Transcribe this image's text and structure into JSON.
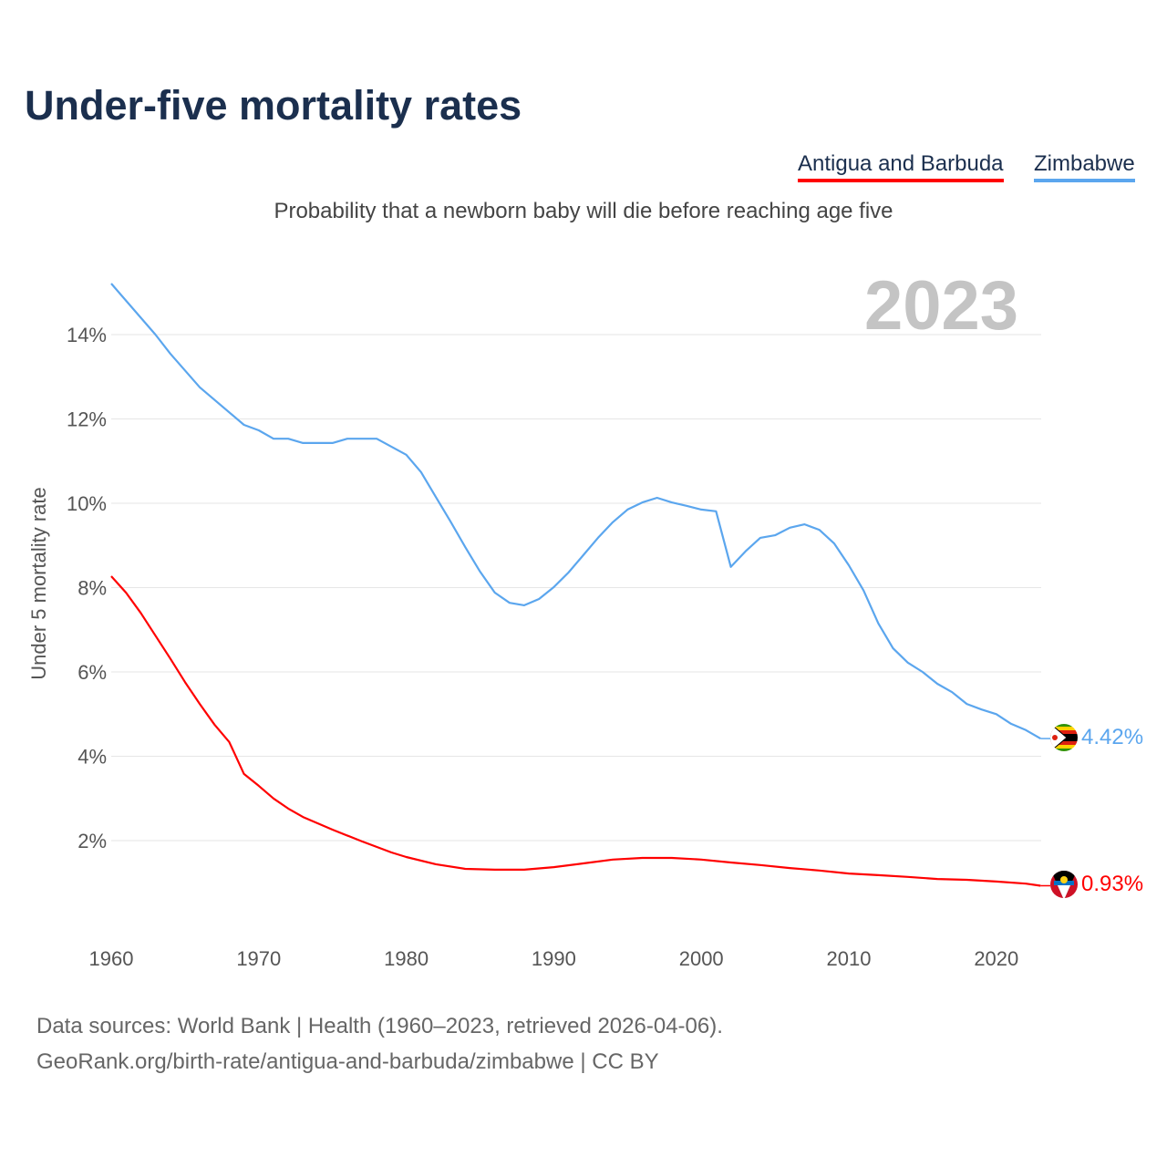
{
  "chart_data": {
    "type": "line",
    "title": "Under-five mortality rates",
    "subtitle": "Probability that a newborn baby will die before reaching age five",
    "ylabel": "Under 5 mortality rate",
    "xlabel": "",
    "year_label": "2023",
    "xlim": [
      1960,
      2023
    ],
    "ylim": [
      0,
      15.5
    ],
    "x_ticks": [
      1960,
      1970,
      1980,
      1990,
      2000,
      2010,
      2020
    ],
    "y_ticks": [
      2,
      4,
      6,
      8,
      10,
      12,
      14
    ],
    "y_tick_labels": [
      "2%",
      "4%",
      "6%",
      "8%",
      "10%",
      "12%",
      "14%"
    ],
    "grid": true,
    "legend_position": "top-right",
    "series": [
      {
        "name": "Antigua and Barbuda",
        "color": "#ff0000",
        "end_label": "0.93%",
        "x": [
          1960,
          1961,
          1962,
          1963,
          1964,
          1965,
          1966,
          1967,
          1968,
          1969,
          1970,
          1971,
          1972,
          1973,
          1975,
          1977,
          1979,
          1980,
          1982,
          1984,
          1986,
          1988,
          1990,
          1992,
          1994,
          1996,
          1998,
          2000,
          2002,
          2004,
          2006,
          2008,
          2010,
          2012,
          2014,
          2016,
          2018,
          2020,
          2022,
          2023
        ],
        "values": [
          8.27,
          7.88,
          7.4,
          6.86,
          6.32,
          5.76,
          5.24,
          4.75,
          4.34,
          3.58,
          3.3,
          3.0,
          2.76,
          2.56,
          2.26,
          1.98,
          1.72,
          1.61,
          1.44,
          1.33,
          1.31,
          1.31,
          1.37,
          1.46,
          1.55,
          1.59,
          1.59,
          1.55,
          1.48,
          1.42,
          1.35,
          1.29,
          1.22,
          1.18,
          1.14,
          1.09,
          1.07,
          1.03,
          0.98,
          0.93
        ]
      },
      {
        "name": "Zimbabwe",
        "color": "#5ba6ee",
        "end_label": "4.42%",
        "x": [
          1960,
          1963,
          1964,
          1966,
          1969,
          1970,
          1971,
          1972,
          1973,
          1975,
          1976,
          1978,
          1980,
          1981,
          1982,
          1983,
          1984,
          1985,
          1986,
          1987,
          1988,
          1989,
          1990,
          1991,
          1992,
          1993,
          1994,
          1995,
          1996,
          1997,
          1998,
          1999,
          2000,
          2001,
          2002,
          2003,
          2004,
          2005,
          2006,
          2007,
          2008,
          2009,
          2010,
          2011,
          2012,
          2013,
          2014,
          2015,
          2016,
          2017,
          2018,
          2019,
          2020,
          2021,
          2022,
          2023
        ],
        "values": [
          15.21,
          14.0,
          13.55,
          12.75,
          11.86,
          11.73,
          11.53,
          11.53,
          11.43,
          11.43,
          11.53,
          11.53,
          11.15,
          10.74,
          10.15,
          9.57,
          8.96,
          8.38,
          7.88,
          7.64,
          7.58,
          7.73,
          8.01,
          8.36,
          8.77,
          9.18,
          9.55,
          9.85,
          10.02,
          10.13,
          10.02,
          9.94,
          9.85,
          9.81,
          8.49,
          8.86,
          9.18,
          9.24,
          9.42,
          9.5,
          9.37,
          9.05,
          8.53,
          7.93,
          7.15,
          6.56,
          6.22,
          6.0,
          5.72,
          5.52,
          5.24,
          5.11,
          5.0,
          4.77,
          4.62,
          4.42
        ]
      }
    ]
  },
  "source_line1": "Data sources: World Bank | Health (1960–2023, retrieved 2026-04-06).",
  "source_line2": "GeoRank.org/birth-rate/antigua-and-barbuda/zimbabwe | CC BY"
}
